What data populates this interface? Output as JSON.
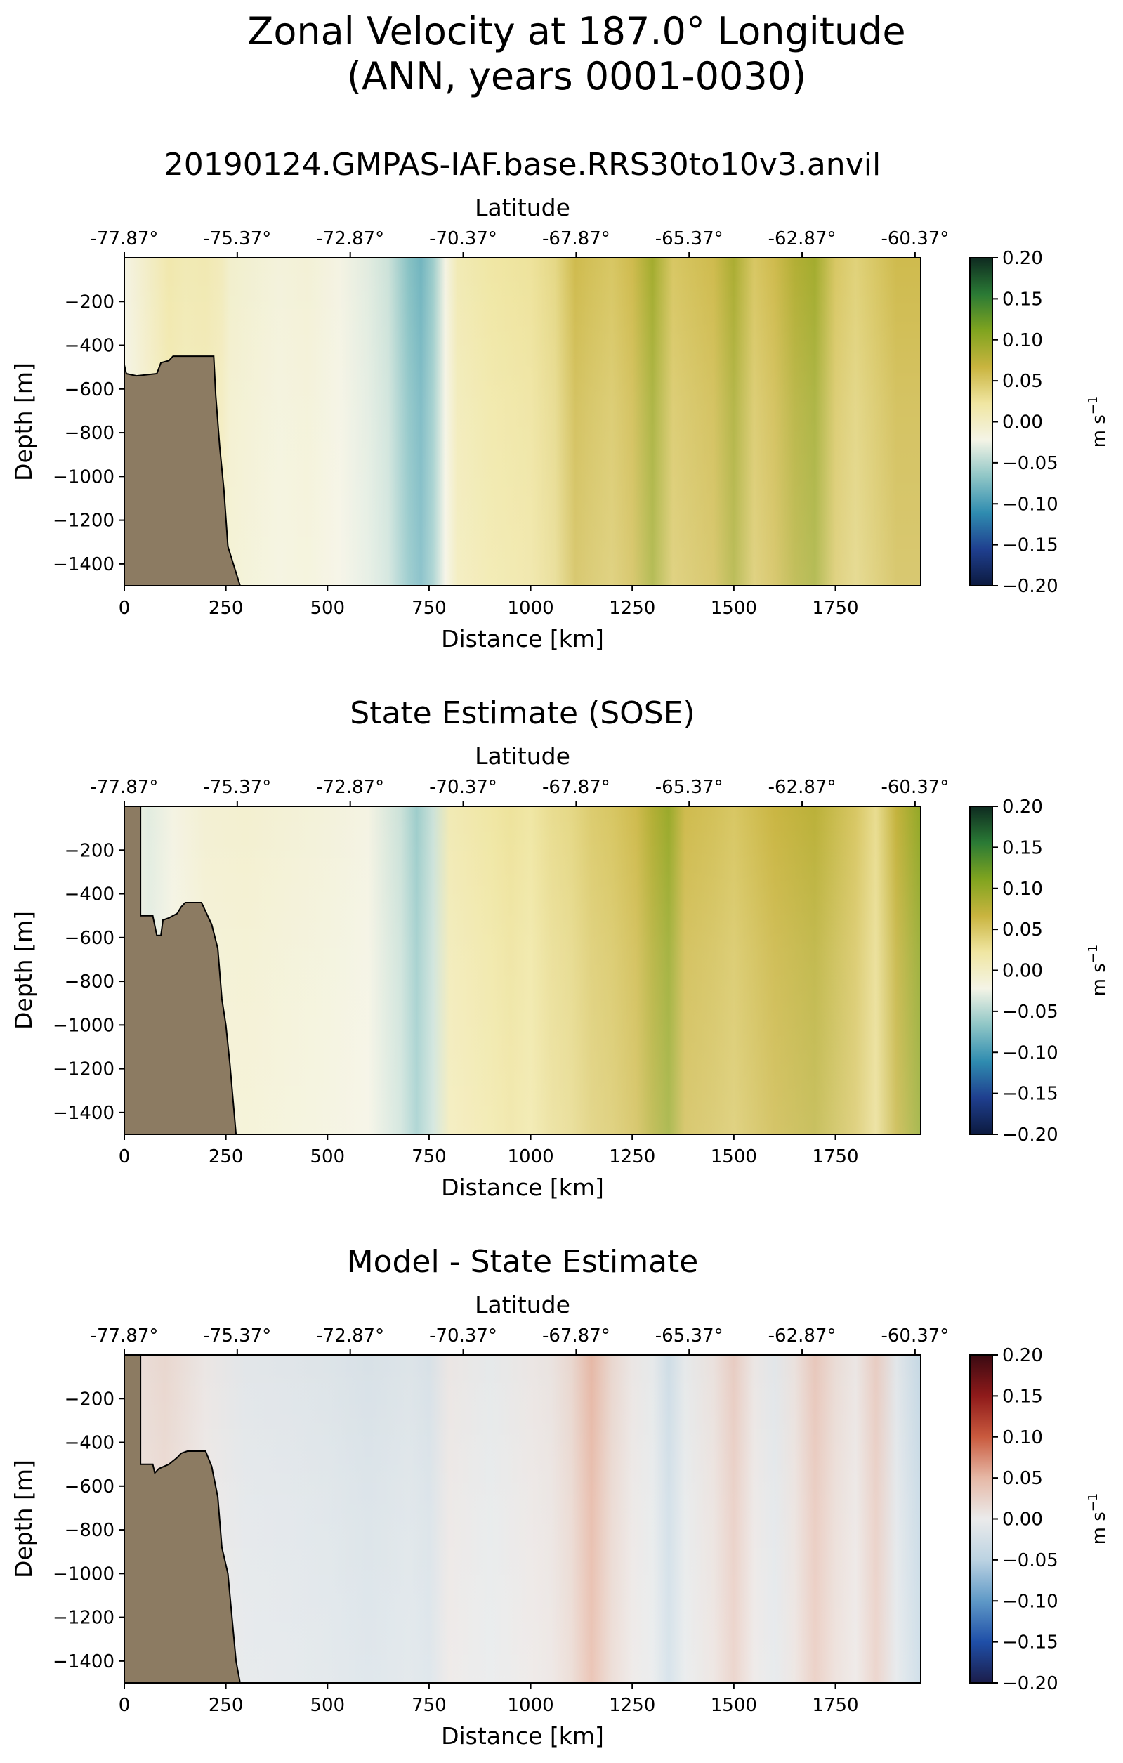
{
  "suptitle": {
    "line1": "Zonal Velocity at 187.0° Longitude",
    "line2": "(ANN, years 0001-0030)"
  },
  "colors": {
    "land": "#8c7b62",
    "velocity_colormap": [
      "#0c1a3f",
      "#1f3f8f",
      "#2f8cb0",
      "#8fc6c6",
      "#f4f4e6",
      "#f0e6a2",
      "#c9b43f",
      "#80a41f",
      "#2a7a35",
      "#0e2a20"
    ],
    "difference_colormap": [
      "#1b1d4a",
      "#1f4fa8",
      "#5f99c7",
      "#bcd3e2",
      "#ebebeb",
      "#e6b8a6",
      "#c95a3e",
      "#8f1a1a",
      "#3a0a12"
    ]
  },
  "chart_data": [
    {
      "type": "heatmap",
      "title": "20190124.GMPAS-IAF.base.RRS30to10v3.anvil",
      "xlabel": "Distance [km]",
      "ylabel": "Depth [m]",
      "top_xlabel": "Latitude",
      "xlim": [
        0,
        1960
      ],
      "ylim": [
        -1500,
        0
      ],
      "x_ticks": [
        0,
        250,
        500,
        750,
        1000,
        1250,
        1500,
        1750
      ],
      "x_tick_labels": [
        "0",
        "250",
        "500",
        "750",
        "1000",
        "1250",
        "1500",
        "1750"
      ],
      "y_ticks": [
        -200,
        -400,
        -600,
        -800,
        -1000,
        -1200,
        -1400
      ],
      "y_tick_labels": [
        "−200",
        "−400",
        "−600",
        "−800",
        "−1000",
        "−1200",
        "−1400"
      ],
      "top_ticks": [
        0,
        278,
        556,
        834,
        1112,
        1390,
        1668,
        1946
      ],
      "top_tick_labels": [
        "-77.87°",
        "-75.37°",
        "-72.87°",
        "-70.37°",
        "-67.87°",
        "-65.37°",
        "-62.87°",
        "-60.37°"
      ],
      "colorbar": {
        "colormap": "velocity",
        "range": [
          -0.2,
          0.2
        ],
        "ticks": [
          0.2,
          0.15,
          0.1,
          0.05,
          0,
          -0.05,
          -0.1,
          -0.15,
          -0.2
        ],
        "tick_labels": [
          "0.20",
          "0.15",
          "0.10",
          "0.05",
          "0.00",
          "−0.05",
          "−0.10",
          "−0.15",
          "−0.20"
        ],
        "unit_label": "m s"
      },
      "bathymetry": [
        [
          0,
          -490
        ],
        [
          5,
          -530
        ],
        [
          30,
          -540
        ],
        [
          80,
          -530
        ],
        [
          90,
          -480
        ],
        [
          110,
          -470
        ],
        [
          120,
          -450
        ],
        [
          220,
          -450
        ],
        [
          225,
          -630
        ],
        [
          235,
          -870
        ],
        [
          245,
          -1060
        ],
        [
          255,
          -1320
        ],
        [
          270,
          -1410
        ],
        [
          285,
          -1500
        ]
      ],
      "velocity_profile": [
        [
          0,
          -0.02
        ],
        [
          80,
          0.005
        ],
        [
          110,
          0.015
        ],
        [
          150,
          0.01
        ],
        [
          200,
          0.012
        ],
        [
          240,
          0.005
        ],
        [
          260,
          -0.005
        ],
        [
          380,
          -0.015
        ],
        [
          450,
          -0.012
        ],
        [
          530,
          -0.02
        ],
        [
          600,
          -0.03
        ],
        [
          650,
          -0.04
        ],
        [
          700,
          -0.07
        ],
        [
          730,
          -0.08
        ],
        [
          760,
          -0.06
        ],
        [
          790,
          -0.02
        ],
        [
          820,
          0.01
        ],
        [
          900,
          0.02
        ],
        [
          1000,
          0.025
        ],
        [
          1060,
          0.035
        ],
        [
          1110,
          0.06
        ],
        [
          1150,
          0.055
        ],
        [
          1200,
          0.05
        ],
        [
          1250,
          0.06
        ],
        [
          1300,
          0.09
        ],
        [
          1350,
          0.05
        ],
        [
          1400,
          0.055
        ],
        [
          1450,
          0.06
        ],
        [
          1500,
          0.085
        ],
        [
          1550,
          0.05
        ],
        [
          1600,
          0.06
        ],
        [
          1650,
          0.08
        ],
        [
          1700,
          0.09
        ],
        [
          1750,
          0.05
        ],
        [
          1800,
          0.04
        ],
        [
          1850,
          0.05
        ],
        [
          1900,
          0.06
        ],
        [
          1960,
          0.06
        ]
      ]
    },
    {
      "type": "heatmap",
      "title": "State Estimate (SOSE)",
      "xlabel": "Distance [km]",
      "ylabel": "Depth [m]",
      "top_xlabel": "Latitude",
      "xlim": [
        0,
        1960
      ],
      "ylim": [
        -1500,
        0
      ],
      "x_ticks": [
        0,
        250,
        500,
        750,
        1000,
        1250,
        1500,
        1750
      ],
      "x_tick_labels": [
        "0",
        "250",
        "500",
        "750",
        "1000",
        "1250",
        "1500",
        "1750"
      ],
      "y_ticks": [
        -200,
        -400,
        -600,
        -800,
        -1000,
        -1200,
        -1400
      ],
      "y_tick_labels": [
        "−200",
        "−400",
        "−600",
        "−800",
        "−1000",
        "−1200",
        "−1400"
      ],
      "top_ticks": [
        0,
        278,
        556,
        834,
        1112,
        1390,
        1668,
        1946
      ],
      "top_tick_labels": [
        "-77.87°",
        "-75.37°",
        "-72.87°",
        "-70.37°",
        "-67.87°",
        "-65.37°",
        "-62.87°",
        "-60.37°"
      ],
      "colorbar": {
        "colormap": "velocity",
        "range": [
          -0.2,
          0.2
        ],
        "ticks": [
          0.2,
          0.15,
          0.1,
          0.05,
          0,
          -0.05,
          -0.1,
          -0.15,
          -0.2
        ],
        "tick_labels": [
          "0.20",
          "0.15",
          "0.10",
          "0.05",
          "0.00",
          "−0.05",
          "−0.10",
          "−0.15",
          "−0.20"
        ],
        "unit_label": "m s"
      },
      "bathymetry": [
        [
          0,
          0
        ],
        [
          40,
          0
        ],
        [
          40,
          -500
        ],
        [
          70,
          -500
        ],
        [
          80,
          -590
        ],
        [
          90,
          -590
        ],
        [
          95,
          -520
        ],
        [
          110,
          -510
        ],
        [
          130,
          -490
        ],
        [
          140,
          -460
        ],
        [
          150,
          -440
        ],
        [
          190,
          -440
        ],
        [
          200,
          -480
        ],
        [
          215,
          -540
        ],
        [
          230,
          -650
        ],
        [
          240,
          -880
        ],
        [
          250,
          -1000
        ],
        [
          260,
          -1180
        ],
        [
          275,
          -1500
        ]
      ],
      "velocity_profile": [
        [
          0,
          -0.02
        ],
        [
          60,
          -0.03
        ],
        [
          120,
          -0.02
        ],
        [
          200,
          -0.01
        ],
        [
          300,
          -0.008
        ],
        [
          400,
          -0.012
        ],
        [
          500,
          -0.015
        ],
        [
          600,
          -0.02
        ],
        [
          680,
          -0.04
        ],
        [
          720,
          -0.06
        ],
        [
          760,
          -0.04
        ],
        [
          800,
          0.01
        ],
        [
          850,
          0.015
        ],
        [
          900,
          0.02
        ],
        [
          950,
          0.025
        ],
        [
          1000,
          0.02
        ],
        [
          1050,
          0.03
        ],
        [
          1100,
          0.035
        ],
        [
          1150,
          0.045
        ],
        [
          1200,
          0.05
        ],
        [
          1260,
          0.06
        ],
        [
          1300,
          0.08
        ],
        [
          1340,
          0.095
        ],
        [
          1380,
          0.06
        ],
        [
          1450,
          0.055
        ],
        [
          1500,
          0.05
        ],
        [
          1600,
          0.065
        ],
        [
          1700,
          0.075
        ],
        [
          1800,
          0.05
        ],
        [
          1850,
          0.03
        ],
        [
          1900,
          0.07
        ],
        [
          1960,
          0.1
        ]
      ]
    },
    {
      "type": "heatmap",
      "title": "Model - State Estimate",
      "xlabel": "Distance [km]",
      "ylabel": "Depth [m]",
      "top_xlabel": "Latitude",
      "xlim": [
        0,
        1960
      ],
      "ylim": [
        -1500,
        0
      ],
      "x_ticks": [
        0,
        250,
        500,
        750,
        1000,
        1250,
        1500,
        1750
      ],
      "x_tick_labels": [
        "0",
        "250",
        "500",
        "750",
        "1000",
        "1250",
        "1500",
        "1750"
      ],
      "y_ticks": [
        -200,
        -400,
        -600,
        -800,
        -1000,
        -1200,
        -1400
      ],
      "y_tick_labels": [
        "−200",
        "−400",
        "−600",
        "−800",
        "−1000",
        "−1200",
        "−1400"
      ],
      "top_ticks": [
        0,
        278,
        556,
        834,
        1112,
        1390,
        1668,
        1946
      ],
      "top_tick_labels": [
        "-77.87°",
        "-75.37°",
        "-72.87°",
        "-70.37°",
        "-67.87°",
        "-65.37°",
        "-62.87°",
        "-60.37°"
      ],
      "colorbar": {
        "colormap": "difference",
        "range": [
          -0.2,
          0.2
        ],
        "ticks": [
          0.2,
          0.15,
          0.1,
          0.05,
          0,
          -0.05,
          -0.1,
          -0.15,
          -0.2
        ],
        "tick_labels": [
          "0.20",
          "0.15",
          "0.10",
          "0.05",
          "0.00",
          "−0.05",
          "−0.10",
          "−0.15",
          "−0.20"
        ],
        "unit_label": "m s"
      },
      "bathymetry": [
        [
          0,
          0
        ],
        [
          40,
          0
        ],
        [
          40,
          -500
        ],
        [
          70,
          -500
        ],
        [
          75,
          -540
        ],
        [
          85,
          -520
        ],
        [
          110,
          -500
        ],
        [
          130,
          -470
        ],
        [
          140,
          -450
        ],
        [
          155,
          -440
        ],
        [
          200,
          -440
        ],
        [
          215,
          -510
        ],
        [
          230,
          -650
        ],
        [
          240,
          -880
        ],
        [
          255,
          -1000
        ],
        [
          265,
          -1200
        ],
        [
          275,
          -1400
        ],
        [
          285,
          -1500
        ]
      ],
      "velocity_profile": [
        [
          0,
          0.01
        ],
        [
          100,
          0.02
        ],
        [
          200,
          0.005
        ],
        [
          300,
          -0.01
        ],
        [
          400,
          -0.012
        ],
        [
          500,
          -0.015
        ],
        [
          600,
          -0.02
        ],
        [
          700,
          -0.015
        ],
        [
          750,
          -0.02
        ],
        [
          800,
          0.005
        ],
        [
          900,
          -0.005
        ],
        [
          1000,
          0.005
        ],
        [
          1050,
          0.008
        ],
        [
          1100,
          0.02
        ],
        [
          1150,
          0.05
        ],
        [
          1200,
          0.02
        ],
        [
          1250,
          0.005
        ],
        [
          1300,
          -0.005
        ],
        [
          1340,
          -0.03
        ],
        [
          1380,
          -0.005
        ],
        [
          1450,
          0.01
        ],
        [
          1500,
          0.03
        ],
        [
          1550,
          0.005
        ],
        [
          1600,
          -0.01
        ],
        [
          1650,
          0.01
        ],
        [
          1700,
          0.035
        ],
        [
          1750,
          0.015
        ],
        [
          1800,
          0.005
        ],
        [
          1850,
          0.03
        ],
        [
          1900,
          -0.01
        ],
        [
          1960,
          -0.04
        ]
      ]
    }
  ]
}
